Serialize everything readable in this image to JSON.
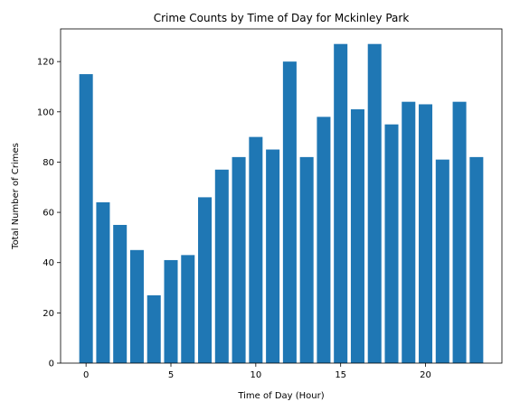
{
  "chart_data": {
    "type": "bar",
    "title": "Crime Counts by Time of Day for Mckinley Park",
    "xlabel": "Time of Day (Hour)",
    "ylabel": "Total Number of Crimes",
    "x": [
      0,
      1,
      2,
      3,
      4,
      5,
      6,
      7,
      8,
      9,
      10,
      11,
      12,
      13,
      14,
      15,
      16,
      17,
      18,
      19,
      20,
      21,
      22,
      23
    ],
    "values": [
      115,
      64,
      55,
      45,
      27,
      41,
      43,
      66,
      77,
      82,
      90,
      85,
      120,
      82,
      98,
      127,
      101,
      127,
      95,
      104,
      103,
      81,
      104,
      82
    ],
    "xlim": [
      -1.5,
      24.5
    ],
    "ylim": [
      0,
      133
    ],
    "xticks": [
      0,
      5,
      10,
      15,
      20
    ],
    "yticks": [
      0,
      20,
      40,
      60,
      80,
      100,
      120
    ],
    "bar_color": "#1f77b4",
    "grid": false,
    "legend": "none"
  }
}
